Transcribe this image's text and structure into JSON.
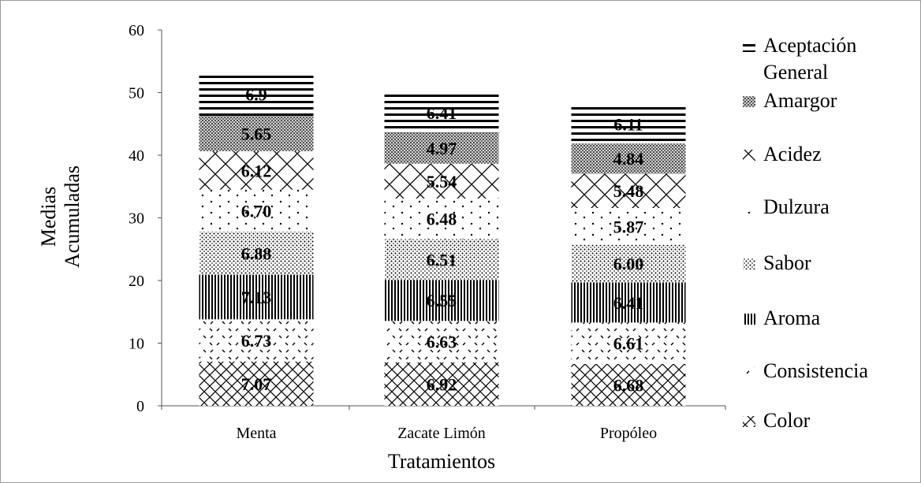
{
  "chart_data": {
    "type": "bar",
    "stacked": true,
    "categories": [
      "Menta",
      "Zacate Limón",
      "Propóleo"
    ],
    "xlabel": "Tratamientos",
    "ylabel_lines": [
      "Medias",
      "Acumuladas"
    ],
    "ylim": [
      0,
      60
    ],
    "yticks": [
      0,
      10,
      20,
      30,
      40,
      50,
      60
    ],
    "grid": false,
    "legend_position": "right",
    "series": [
      {
        "name": "Color",
        "pattern": "crosshatch",
        "values": [
          7.07,
          6.92,
          6.68
        ],
        "labels": [
          "7.07",
          "6.92",
          "6.68"
        ]
      },
      {
        "name": "Consistencia",
        "pattern": "dashes",
        "values": [
          6.73,
          6.63,
          6.61
        ],
        "labels": [
          "6.73",
          "6.63",
          "6.61"
        ]
      },
      {
        "name": "Aroma",
        "pattern": "vertical-lines",
        "values": [
          7.13,
          6.55,
          6.41
        ],
        "labels": [
          "7.13",
          "6.55",
          "6.41"
        ]
      },
      {
        "name": "Sabor",
        "pattern": "dots-dense",
        "values": [
          6.88,
          6.51,
          6.0
        ],
        "labels": [
          "6.88",
          "6.51",
          "6.00"
        ]
      },
      {
        "name": "Dulzura",
        "pattern": "dots-sparse",
        "values": [
          6.7,
          6.48,
          5.87
        ],
        "labels": [
          "6.70",
          "6.48",
          "5.87"
        ]
      },
      {
        "name": "Acidez",
        "pattern": "large-cross",
        "values": [
          6.12,
          5.54,
          5.48
        ],
        "labels": [
          "6.12",
          "5.54",
          "5.48"
        ]
      },
      {
        "name": "Amargor",
        "pattern": "dark-grid",
        "values": [
          5.65,
          4.97,
          4.84
        ],
        "labels": [
          "5.65",
          "4.97",
          "4.84"
        ]
      },
      {
        "name": "Aceptación General",
        "legend_lines": [
          "Aceptación",
          "General"
        ],
        "pattern": "horizontal-lines",
        "values": [
          6.9,
          6.41,
          6.11
        ],
        "labels": [
          "6.9",
          "6.41",
          "6.11"
        ]
      }
    ]
  }
}
